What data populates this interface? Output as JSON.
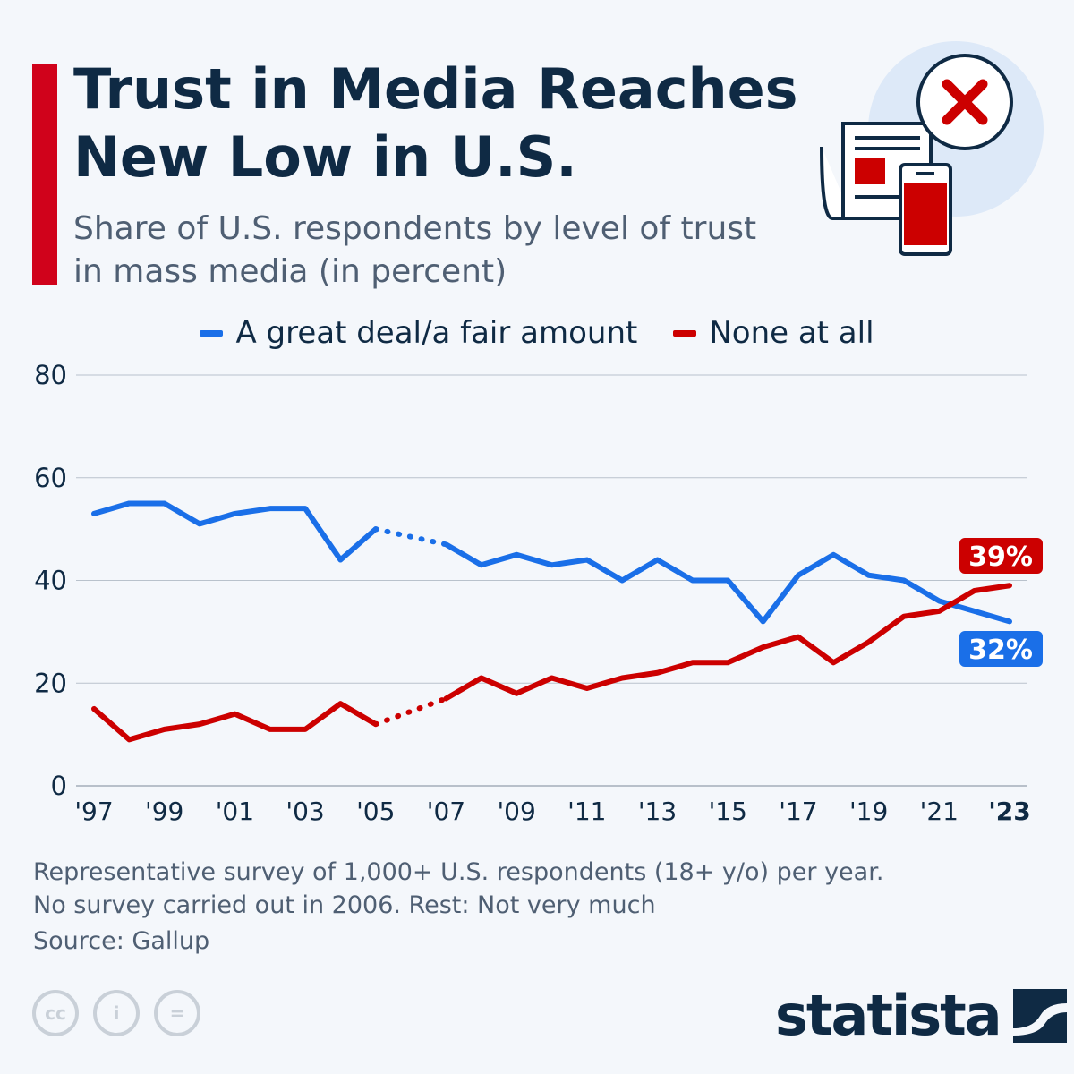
{
  "header": {
    "title": "Trust in Media Reaches New Low in U.S.",
    "subtitle": "Share of U.S. respondents by level of trust in mass media (in percent)"
  },
  "colors": {
    "accent": "#d0021b",
    "blue": "#1a6fe8",
    "red": "#cc0000",
    "navy": "#0f2a44"
  },
  "chart_data": {
    "type": "line",
    "title": "Trust in Media Reaches New Low in U.S.",
    "ylim": [
      0,
      80
    ],
    "yticks": [
      0,
      20,
      40,
      60,
      80
    ],
    "grid": true,
    "legend_position": "top",
    "x": [
      1997,
      1998,
      1999,
      2000,
      2001,
      2002,
      2003,
      2004,
      2005,
      2007,
      2008,
      2009,
      2010,
      2011,
      2012,
      2013,
      2014,
      2015,
      2016,
      2017,
      2018,
      2019,
      2020,
      2021,
      2022,
      2023
    ],
    "xtick_labels": [
      "'97",
      "'99",
      "'01",
      "'03",
      "'05",
      "'07",
      "'09",
      "'11",
      "'13",
      "'15",
      "'17",
      "'19",
      "'21",
      "'23"
    ],
    "xtick_years": [
      1997,
      1999,
      2001,
      2003,
      2005,
      2007,
      2009,
      2011,
      2013,
      2015,
      2017,
      2019,
      2021,
      2023
    ],
    "gap_note": "dotted 2005-2007",
    "series": [
      {
        "name": "A great deal/a fair amount",
        "color": "#1a6fe8",
        "end_label": "32%",
        "values": [
          53,
          55,
          55,
          51,
          53,
          54,
          54,
          44,
          50,
          47,
          43,
          45,
          43,
          44,
          40,
          44,
          40,
          40,
          32,
          41,
          45,
          41,
          40,
          36,
          34,
          32
        ]
      },
      {
        "name": "None at all",
        "color": "#cc0000",
        "end_label": "39%",
        "values": [
          15,
          9,
          11,
          12,
          14,
          11,
          11,
          16,
          12,
          17,
          21,
          18,
          21,
          19,
          21,
          22,
          24,
          24,
          27,
          29,
          24,
          28,
          33,
          34,
          38,
          39
        ]
      }
    ]
  },
  "footer": {
    "note_line1": "Representative survey of 1,000+ U.S. respondents  (18+ y/o) per year.",
    "note_line2": "No survey carried out in 2006. Rest: Not very much",
    "source": "Source: Gallup"
  },
  "branding": {
    "logo": "statista",
    "license_icons": [
      "cc",
      "by",
      "nd"
    ]
  }
}
